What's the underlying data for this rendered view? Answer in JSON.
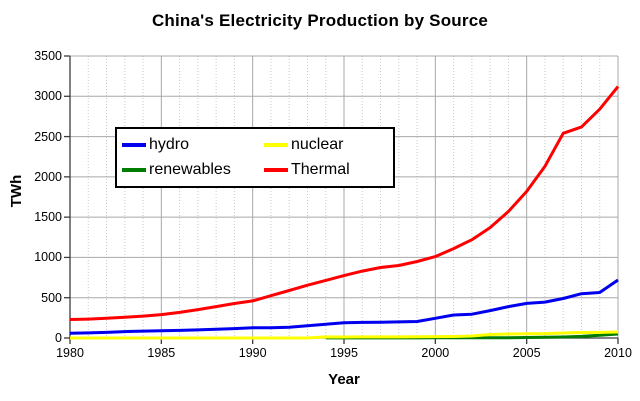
{
  "title_bar": null,
  "chart_data": {
    "type": "line",
    "title": "China's Electricity Production by Source",
    "xlabel": "Year",
    "ylabel": "TWh",
    "xlim": [
      1980,
      2010
    ],
    "ylim": [
      0,
      3500
    ],
    "x_major_ticks": [
      1980,
      1985,
      1990,
      1995,
      2000,
      2005,
      2010
    ],
    "y_major_ticks": [
      0,
      500,
      1000,
      1500,
      2000,
      2500,
      3000,
      3500
    ],
    "grid": "major gridlines solid gray; minor vertical dotted gridline at every year",
    "legend_position": "upper-left inside plot",
    "x": [
      1980,
      1981,
      1982,
      1983,
      1984,
      1985,
      1986,
      1987,
      1988,
      1989,
      1990,
      1991,
      1992,
      1993,
      1994,
      1995,
      1996,
      1997,
      1998,
      1999,
      2000,
      2001,
      2002,
      2003,
      2004,
      2005,
      2006,
      2007,
      2008,
      2009,
      2010
    ],
    "series": [
      {
        "name": "hydro",
        "color": "#0000ee",
        "values": [
          58,
          63,
          70,
          80,
          86,
          91,
          94,
          100,
          108,
          117,
          127,
          126,
          133,
          152,
          170,
          190,
          193,
          196,
          200,
          205,
          245,
          285,
          295,
          340,
          390,
          430,
          445,
          490,
          550,
          565,
          720
        ]
      },
      {
        "name": "nuclear",
        "color": "#ffff00",
        "values": [
          0,
          0,
          0,
          0,
          0,
          0,
          0,
          0,
          0,
          0,
          0,
          0,
          0,
          0,
          14,
          13,
          14,
          14,
          14,
          15,
          17,
          18,
          25,
          43,
          50,
          53,
          55,
          62,
          68,
          70,
          74
        ]
      },
      {
        "name": "renewables",
        "color": "#007d00",
        "values": [
          null,
          null,
          null,
          null,
          null,
          null,
          null,
          null,
          null,
          null,
          null,
          null,
          null,
          null,
          1,
          1,
          1,
          1,
          1,
          1,
          2,
          2,
          2,
          3,
          4,
          6,
          9,
          13,
          20,
          35,
          50
        ]
      },
      {
        "name": "Thermal",
        "color": "#ff0000",
        "values": [
          230,
          235,
          245,
          258,
          272,
          290,
          318,
          352,
          390,
          428,
          460,
          525,
          590,
          655,
          715,
          775,
          830,
          875,
          900,
          950,
          1010,
          1110,
          1220,
          1370,
          1570,
          1820,
          2130,
          2540,
          2620,
          2840,
          3120
        ]
      }
    ],
    "style": {
      "background": "#ffffff",
      "axis_color": "#3c3c3c",
      "major_grid_color": "#a8a8a8",
      "minor_grid_color": "#c9c9c9",
      "legend_border_color": "#000000",
      "line_width": 3
    }
  }
}
